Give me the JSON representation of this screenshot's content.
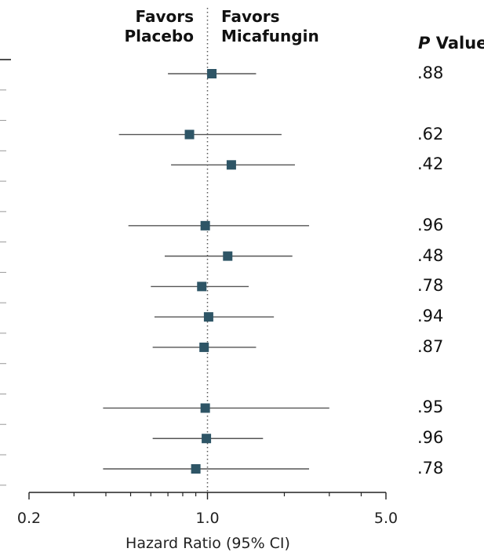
{
  "header": {
    "left_line1": "Favors",
    "left_line2": "Placebo",
    "right_line1": "Favors",
    "right_line2": "Micafungin",
    "pvalue_italic": "P",
    "pvalue_rest": " Value"
  },
  "chart_data": {
    "type": "forest",
    "xlabel": "Hazard Ratio (95% CI)",
    "x_scale": "log",
    "xlim": [
      0.2,
      5.0
    ],
    "xticks": [
      0.2,
      1.0,
      5.0
    ],
    "xtick_labels": [
      "0.2",
      "1.0",
      "5.0"
    ],
    "reference_line": 1.0,
    "marker_color": "#2e5566",
    "rows": [
      {
        "row": 1,
        "hr": 1.04,
        "ci_low": 0.7,
        "ci_high": 1.55,
        "p_value": ".88"
      },
      {
        "row": 3,
        "hr": 0.85,
        "ci_low": 0.45,
        "ci_high": 1.95,
        "p_value": ".62"
      },
      {
        "row": 4,
        "hr": 1.24,
        "ci_low": 0.72,
        "ci_high": 2.2,
        "p_value": ".42"
      },
      {
        "row": 6,
        "hr": 0.98,
        "ci_low": 0.49,
        "ci_high": 2.5,
        "p_value": ".96"
      },
      {
        "row": 7,
        "hr": 1.2,
        "ci_low": 0.68,
        "ci_high": 2.15,
        "p_value": ".48"
      },
      {
        "row": 8,
        "hr": 0.95,
        "ci_low": 0.6,
        "ci_high": 1.45,
        "p_value": ".78"
      },
      {
        "row": 9,
        "hr": 1.01,
        "ci_low": 0.62,
        "ci_high": 1.82,
        "p_value": ".94"
      },
      {
        "row": 10,
        "hr": 0.97,
        "ci_low": 0.61,
        "ci_high": 1.55,
        "p_value": ".87"
      },
      {
        "row": 12,
        "hr": 0.98,
        "ci_low": 0.39,
        "ci_high": 3.0,
        "p_value": ".95"
      },
      {
        "row": 13,
        "hr": 0.99,
        "ci_low": 0.61,
        "ci_high": 1.65,
        "p_value": ".96"
      },
      {
        "row": 14,
        "hr": 0.9,
        "ci_low": 0.39,
        "ci_high": 2.5,
        "p_value": ".78"
      }
    ]
  }
}
